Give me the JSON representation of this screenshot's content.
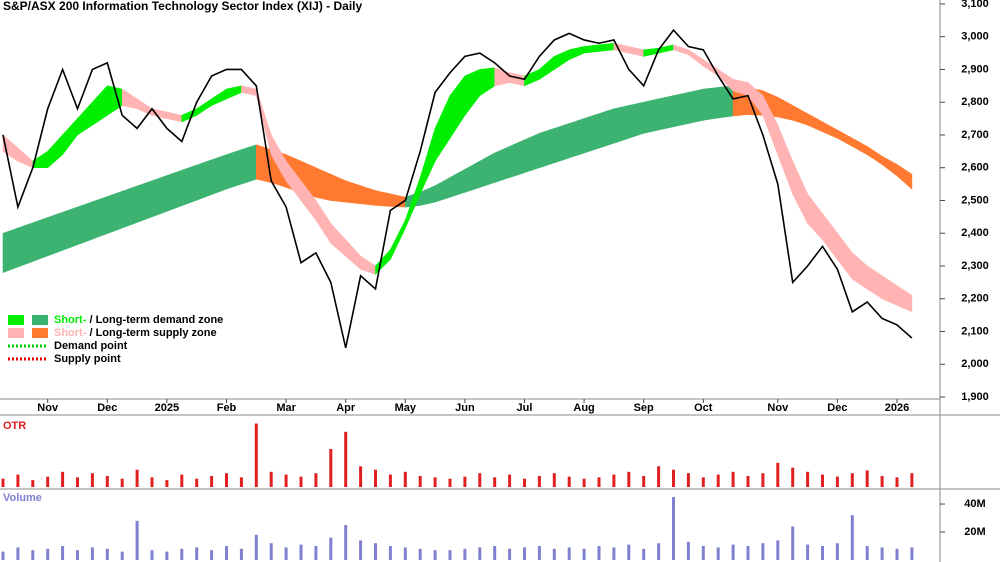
{
  "chart_data": [
    {
      "type": "line",
      "title": "S&P/ASX 200 Information Technology Sector Index (XIJ) - Daily",
      "categories": [
        null,
        null,
        null,
        "Nov",
        null,
        null,
        null,
        "Dec",
        null,
        null,
        null,
        "2025",
        null,
        null,
        null,
        "Feb",
        null,
        null,
        null,
        "Mar",
        null,
        null,
        null,
        "Apr",
        null,
        null,
        null,
        "May",
        null,
        null,
        null,
        "Jun",
        null,
        null,
        null,
        "Jul",
        null,
        null,
        null,
        "Aug",
        null,
        null,
        null,
        "Sep",
        null,
        null,
        null,
        "Oct",
        null,
        null,
        null,
        null,
        "Nov",
        null,
        null,
        null,
        "Dec",
        null,
        null,
        null,
        "2026",
        null
      ],
      "series": [
        {
          "name": "Close",
          "color": "#000000",
          "values": [
            2700,
            2480,
            2600,
            2780,
            2900,
            2780,
            2900,
            2920,
            2760,
            2720,
            2780,
            2720,
            2680,
            2800,
            2880,
            2900,
            2900,
            2850,
            2560,
            2480,
            2310,
            2340,
            2250,
            2050,
            2270,
            2230,
            2470,
            2500,
            2650,
            2830,
            2890,
            2940,
            2950,
            2920,
            2880,
            2870,
            2940,
            2990,
            3010,
            2990,
            2980,
            2990,
            2900,
            2850,
            2960,
            3020,
            2970,
            2960,
            2880,
            2810,
            2820,
            2700,
            2550,
            2250,
            2300,
            2360,
            2290,
            2160,
            2190,
            2140,
            2120,
            2080
          ]
        }
      ],
      "long_zone": {
        "upper": [
          2400,
          2416,
          2432,
          2448,
          2464,
          2480,
          2496,
          2512,
          2528,
          2544,
          2560,
          2576,
          2592,
          2608,
          2624,
          2640,
          2655,
          2670,
          2655,
          2640,
          2620,
          2600,
          2580,
          2560,
          2545,
          2530,
          2520,
          2510,
          2525,
          2545,
          2570,
          2595,
          2620,
          2645,
          2665,
          2685,
          2705,
          2720,
          2735,
          2750,
          2765,
          2780,
          2790,
          2800,
          2810,
          2820,
          2830,
          2840,
          2845,
          2850,
          2845,
          2835,
          2815,
          2790,
          2765,
          2740,
          2715,
          2690,
          2665,
          2635,
          2610,
          2580
        ],
        "lower": [
          2280,
          2297,
          2314,
          2331,
          2348,
          2365,
          2382,
          2399,
          2416,
          2433,
          2450,
          2467,
          2484,
          2501,
          2518,
          2535,
          2550,
          2565,
          2555,
          2540,
          2525,
          2510,
          2500,
          2495,
          2490,
          2485,
          2482,
          2480,
          2485,
          2495,
          2510,
          2525,
          2540,
          2555,
          2570,
          2585,
          2600,
          2615,
          2630,
          2645,
          2660,
          2675,
          2690,
          2705,
          2715,
          2725,
          2735,
          2745,
          2752,
          2758,
          2762,
          2760,
          2755,
          2745,
          2730,
          2710,
          2690,
          2665,
          2640,
          2610,
          2575,
          2535
        ]
      },
      "short_zone": {
        "upper": [
          2700,
          2660,
          2620,
          2650,
          2700,
          2750,
          2800,
          2850,
          2840,
          2810,
          2780,
          2770,
          2760,
          2780,
          2810,
          2840,
          2850,
          2840,
          2700,
          2620,
          2560,
          2500,
          2430,
          2380,
          2330,
          2300,
          2350,
          2440,
          2570,
          2720,
          2820,
          2880,
          2900,
          2905,
          2890,
          2880,
          2900,
          2940,
          2960,
          2970,
          2975,
          2980,
          2970,
          2960,
          2965,
          2975,
          2960,
          2930,
          2900,
          2870,
          2860,
          2820,
          2730,
          2620,
          2520,
          2460,
          2400,
          2340,
          2300,
          2270,
          2240,
          2210
        ],
        "lower": [
          2650,
          2620,
          2600,
          2600,
          2640,
          2700,
          2730,
          2760,
          2790,
          2780,
          2760,
          2750,
          2740,
          2760,
          2790,
          2810,
          2830,
          2820,
          2640,
          2560,
          2500,
          2440,
          2370,
          2330,
          2290,
          2275,
          2320,
          2415,
          2520,
          2620,
          2690,
          2760,
          2820,
          2850,
          2860,
          2850,
          2870,
          2900,
          2930,
          2950,
          2955,
          2960,
          2950,
          2940,
          2950,
          2960,
          2945,
          2910,
          2880,
          2835,
          2820,
          2760,
          2640,
          2520,
          2430,
          2380,
          2320,
          2260,
          2230,
          2200,
          2180,
          2160
        ]
      },
      "legend": [
        {
          "short": "Short-",
          "separator": " / ",
          "long": "Long-term demand zone",
          "short_color": "#00ee00",
          "long_color": "#3cb371"
        },
        {
          "short": "Short-",
          "separator": " / ",
          "long": "Long-term supply zone",
          "short_color": "#ffb3b3",
          "long_color": "#ff7a30"
        }
      ],
      "points": [
        {
          "label": "Demand point",
          "color": "#00cc00"
        },
        {
          "label": "Supply point",
          "color": "#e00000"
        }
      ],
      "ylim": [
        1897,
        3112
      ],
      "yticks": [
        {
          "value": 1900,
          "label": "1,900"
        },
        {
          "value": 2000,
          "label": "2,000"
        },
        {
          "value": 2100,
          "label": "2,100"
        },
        {
          "value": 2200,
          "label": "2,200"
        },
        {
          "value": 2300,
          "label": "2,300"
        },
        {
          "value": 2400,
          "label": "2,400"
        },
        {
          "value": 2500,
          "label": "2,500"
        },
        {
          "value": 2600,
          "label": "2,600"
        },
        {
          "value": 2700,
          "label": "2,700"
        },
        {
          "value": 2800,
          "label": "2,800"
        },
        {
          "value": 2900,
          "label": "2,900"
        },
        {
          "value": 3000,
          "label": "3,000"
        },
        {
          "value": 3100,
          "label": "3,100"
        }
      ]
    },
    {
      "type": "bar",
      "title": "OTR",
      "color": "#e02020",
      "ylim": [
        0,
        100
      ],
      "values": [
        12,
        18,
        10,
        15,
        22,
        14,
        20,
        16,
        12,
        25,
        14,
        10,
        18,
        12,
        16,
        20,
        14,
        92,
        22,
        18,
        15,
        20,
        55,
        80,
        30,
        25,
        18,
        22,
        16,
        14,
        12,
        15,
        20,
        14,
        18,
        12,
        16,
        20,
        15,
        12,
        14,
        18,
        22,
        16,
        30,
        25,
        20,
        14,
        18,
        22,
        16,
        20,
        35,
        28,
        22,
        18,
        15,
        20,
        24,
        16,
        14,
        20
      ]
    },
    {
      "type": "bar",
      "title": "Volume",
      "color": "#8080d0",
      "ylim": [
        0,
        48600000
      ],
      "yticks": [
        {
          "value": 20000000,
          "label": "20M"
        },
        {
          "value": 40000000,
          "label": "40M"
        }
      ],
      "values": [
        6000000,
        9000000,
        7000000,
        8000000,
        10000000,
        7000000,
        9000000,
        8000000,
        6000000,
        28000000,
        7000000,
        6000000,
        8000000,
        9000000,
        7000000,
        10000000,
        8000000,
        18000000,
        12000000,
        9000000,
        11000000,
        10000000,
        16000000,
        25000000,
        14000000,
        12000000,
        10000000,
        9000000,
        8000000,
        7000000,
        7000000,
        8000000,
        9000000,
        10000000,
        8000000,
        9000000,
        10000000,
        8000000,
        9000000,
        8000000,
        10000000,
        9000000,
        11000000,
        8000000,
        12000000,
        45000000,
        13000000,
        10000000,
        9000000,
        11000000,
        10000000,
        12000000,
        14000000,
        24000000,
        11000000,
        10000000,
        12000000,
        32000000,
        10000000,
        9000000,
        8000000,
        9000000
      ]
    }
  ]
}
